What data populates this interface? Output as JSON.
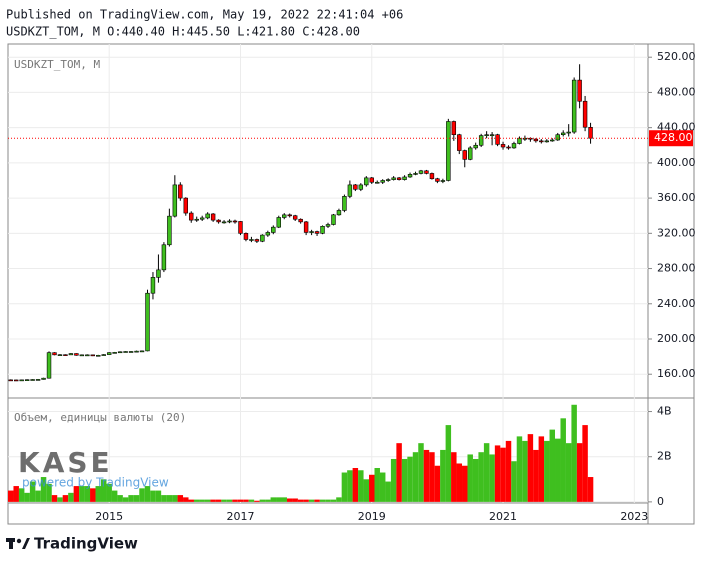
{
  "header": {
    "published": "Published on TradingView.com, May 19, 2022 22:41:04 +06",
    "quote": "USDKZT_TOM, M O:440.40 H:445.50 L:421.80 C:428.00"
  },
  "footer": {
    "brand": "TradingView"
  },
  "chart_data": {
    "type": "candlestick",
    "symbol_label": "USDKZT_TOM, M",
    "volume_label": "Объем, единицы валюты (20)",
    "watermark": "KASE",
    "watermark_sub": "powered by TradingView",
    "up_color": "#3fbf1f",
    "down_color": "#ff0000",
    "grid": true,
    "categories": [
      null,
      null,
      null,
      null,
      null,
      null,
      null,
      null,
      null,
      null,
      null,
      null,
      null,
      null,
      null,
      null,
      null,
      null,
      "2015",
      null,
      null,
      null,
      null,
      null,
      null,
      null,
      null,
      null,
      null,
      null,
      null,
      null,
      null,
      null,
      null,
      null,
      null,
      null,
      null,
      null,
      null,
      null,
      "2017",
      null,
      null,
      null,
      null,
      null,
      null,
      null,
      null,
      null,
      null,
      null,
      null,
      null,
      null,
      null,
      null,
      null,
      null,
      null,
      null,
      null,
      null,
      null,
      "2019",
      null,
      null,
      null,
      null,
      null,
      null,
      null,
      null,
      null,
      null,
      null,
      null,
      null,
      null,
      null,
      null,
      null,
      null,
      null,
      null,
      null,
      null,
      null,
      "2021",
      null,
      null,
      null,
      null,
      null,
      null,
      null,
      null,
      null,
      null,
      null,
      null,
      null,
      null,
      null,
      null,
      null,
      null,
      null,
      null,
      null,
      null,
      null,
      "2023",
      null,
      null
    ],
    "open": [
      153.6,
      153.5,
      153.3,
      153.6,
      153.8,
      154.0,
      154.1,
      155.5,
      184.5,
      182.0,
      182.2,
      182.0,
      183.5,
      181.5,
      182.0,
      182.0,
      181.0,
      181.5,
      182.3,
      184.5,
      184.8,
      185.5,
      185.8,
      185.8,
      186.2,
      186.5,
      252.0,
      270.0,
      278.5,
      307.0,
      339.5,
      375.0,
      360.0,
      343.0,
      335.0,
      336.0,
      337.5,
      342.0,
      335.0,
      333.0,
      333.0,
      334.0,
      333.5,
      320.0,
      313.0,
      313.0,
      311.0,
      318.0,
      321.0,
      327.0,
      338.0,
      341.0,
      340.0,
      336.0,
      333.0,
      321.0,
      322.0,
      320.0,
      328.0,
      330.0,
      341.0,
      346.0,
      362.0,
      375.0,
      370.0,
      375.0,
      383.0,
      378.0,
      378.0,
      380.0,
      381.0,
      383.0,
      381.0,
      384.0,
      387.0,
      388.0,
      391.0,
      388.0,
      382.0,
      379.0,
      380.0,
      447.0,
      432.0,
      414.0,
      404.0,
      417.0,
      420.0,
      431.0,
      432.0,
      432.0,
      421.0,
      418.0,
      417.0,
      422.0,
      428.0,
      428.0,
      427.0,
      425.0,
      424.0,
      425.0,
      426.0,
      432.0,
      434.0,
      435.0,
      494.0,
      470.0,
      440.4,
      null,
      null,
      null,
      null,
      null,
      null,
      null,
      null,
      null,
      null
    ],
    "high": [
      154.2,
      153.9,
      154.0,
      154.2,
      154.4,
      154.6,
      156.0,
      186.0,
      185.0,
      182.8,
      182.6,
      184.0,
      183.8,
      182.5,
      182.6,
      182.3,
      182.0,
      182.8,
      185.0,
      185.3,
      186.0,
      186.2,
      186.3,
      186.8,
      187.0,
      256.0,
      276.0,
      296.0,
      310.0,
      348.0,
      386.0,
      378.0,
      361.0,
      345.0,
      339.0,
      340.0,
      344.0,
      343.0,
      336.0,
      335.0,
      336.0,
      335.5,
      334.0,
      321.0,
      316.0,
      314.0,
      319.0,
      323.0,
      329.0,
      340.0,
      343.0,
      342.5,
      341.0,
      337.0,
      334.0,
      324.0,
      323.0,
      329.0,
      332.0,
      342.0,
      348.0,
      364.0,
      380.0,
      376.0,
      377.0,
      385.0,
      384.0,
      380.0,
      381.5,
      382.5,
      385.0,
      384.0,
      386.0,
      389.0,
      390.0,
      392.0,
      392.0,
      389.0,
      383.0,
      382.0,
      450.0,
      448.0,
      433.0,
      415.0,
      419.0,
      423.0,
      433.0,
      436.0,
      435.0,
      433.0,
      424.0,
      420.0,
      424.0,
      430.0,
      431.0,
      429.0,
      428.0,
      427.0,
      427.0,
      428.0,
      434.0,
      437.0,
      444.0,
      497.0,
      512.0,
      476.0,
      445.5,
      null,
      null,
      null,
      null,
      null,
      null,
      null,
      null,
      null,
      null
    ],
    "low": [
      153.0,
      152.9,
      153.1,
      153.4,
      153.6,
      153.8,
      153.9,
      155.0,
      181.5,
      181.6,
      181.5,
      181.8,
      181.0,
      181.2,
      181.5,
      180.6,
      180.7,
      181.2,
      182.0,
      184.2,
      184.5,
      185.2,
      185.4,
      185.5,
      186.0,
      186.0,
      245.0,
      264.0,
      276.0,
      305.0,
      338.0,
      357.0,
      340.0,
      332.0,
      333.0,
      334.0,
      336.0,
      333.0,
      331.0,
      331.0,
      331.5,
      331.0,
      318.0,
      311.0,
      310.0,
      309.0,
      310.0,
      316.0,
      319.0,
      326.0,
      336.0,
      338.0,
      334.0,
      331.0,
      318.0,
      318.0,
      317.0,
      319.0,
      326.0,
      329.0,
      340.0,
      344.0,
      360.0,
      368.0,
      368.0,
      373.0,
      376.0,
      376.5,
      376.0,
      378.5,
      380.0,
      380.0,
      380.0,
      383.0,
      386.0,
      387.0,
      387.0,
      381.0,
      377.0,
      377.0,
      379.0,
      425.0,
      410.0,
      395.0,
      403.0,
      415.0,
      418.0,
      428.0,
      420.0,
      419.0,
      415.0,
      415.0,
      416.0,
      421.0,
      425.0,
      424.0,
      423.0,
      422.0,
      423.0,
      424.0,
      425.0,
      430.0,
      430.0,
      433.0,
      462.0,
      436.0,
      421.8,
      null,
      null,
      null,
      null,
      null,
      null,
      null,
      null,
      null,
      null
    ],
    "close": [
      153.5,
      153.3,
      153.6,
      153.8,
      154.0,
      154.1,
      155.5,
      184.5,
      182.0,
      182.2,
      182.0,
      183.5,
      181.5,
      182.0,
      182.0,
      181.0,
      181.5,
      182.3,
      184.5,
      184.8,
      185.5,
      185.8,
      185.8,
      186.2,
      186.5,
      252.0,
      270.0,
      278.5,
      307.0,
      339.5,
      375.0,
      360.0,
      343.0,
      335.0,
      336.0,
      337.5,
      342.0,
      335.0,
      333.0,
      333.0,
      334.0,
      333.5,
      320.0,
      313.0,
      313.0,
      311.0,
      318.0,
      321.0,
      327.0,
      338.0,
      341.0,
      340.0,
      336.0,
      333.0,
      321.0,
      322.0,
      320.0,
      328.0,
      330.0,
      341.0,
      346.0,
      362.0,
      375.0,
      370.0,
      375.0,
      383.0,
      378.0,
      378.0,
      380.0,
      381.0,
      383.0,
      381.0,
      384.0,
      387.0,
      388.0,
      391.0,
      388.0,
      382.0,
      379.0,
      380.0,
      447.0,
      432.0,
      414.0,
      404.0,
      417.0,
      420.0,
      431.0,
      432.0,
      432.0,
      421.0,
      418.0,
      417.0,
      422.0,
      428.0,
      428.0,
      427.0,
      425.0,
      424.0,
      425.0,
      426.0,
      432.0,
      434.0,
      435.0,
      494.0,
      470.0,
      440.5,
      428.0,
      null,
      null,
      null,
      null,
      null,
      null,
      null,
      null,
      null,
      null
    ],
    "volume": [
      500000000,
      700000000,
      600000000,
      400000000,
      900000000,
      500000000,
      1100000000,
      800000000,
      300000000,
      200000000,
      300000000,
      400000000,
      700000000,
      700000000,
      700000000,
      600000000,
      700000000,
      1000000000,
      800000000,
      500000000,
      300000000,
      200000000,
      300000000,
      300000000,
      600000000,
      700000000,
      500000000,
      500000000,
      300000000,
      300000000,
      300000000,
      300000000,
      200000000,
      100000000,
      100000000,
      100000000,
      100000000,
      100000000,
      100000000,
      100000000,
      100000000,
      100000000,
      100000000,
      100000000,
      100000000,
      50000000,
      100000000,
      100000000,
      200000000,
      200000000,
      200000000,
      150000000,
      150000000,
      100000000,
      100000000,
      100000000,
      100000000,
      100000000,
      100000000,
      100000000,
      200000000,
      1300000000,
      1400000000,
      1500000000,
      1400000000,
      1000000000,
      1200000000,
      1500000000,
      1300000000,
      900000000,
      1900000000,
      2600000000,
      1900000000,
      2000000000,
      2200000000,
      2600000000,
      2300000000,
      2200000000,
      1600000000,
      2300000000,
      3400000000,
      2200000000,
      1700000000,
      1600000000,
      2100000000,
      1900000000,
      2200000000,
      2600000000,
      2100000000,
      2500000000,
      2400000000,
      2700000000,
      1800000000,
      2900000000,
      2700000000,
      3000000000,
      2300000000,
      2900000000,
      2700000000,
      3200000000,
      2800000000,
      3700000000,
      2600000000,
      4300000000,
      2600000000,
      3400000000,
      1100000000,
      null,
      null,
      null,
      null,
      null,
      null,
      null,
      null,
      null,
      null
    ],
    "ylim": [
      133,
      535
    ],
    "yticks": [
      {
        "value": 160,
        "label": "160.00"
      },
      {
        "value": 200,
        "label": "200.00"
      },
      {
        "value": 240,
        "label": "240.00"
      },
      {
        "value": 280,
        "label": "280.00"
      },
      {
        "value": 320,
        "label": "320.00"
      },
      {
        "value": 360,
        "label": "360.00"
      },
      {
        "value": 400,
        "label": "400.00"
      },
      {
        "value": 440,
        "label": "440.00"
      },
      {
        "value": 480,
        "label": "480.00"
      },
      {
        "value": 520,
        "label": "520.00"
      }
    ],
    "volume_lim": [
      -50000000,
      4600000000
    ],
    "volume_ticks": [
      {
        "value": 0,
        "label": "0"
      },
      {
        "value": 2000000000,
        "label": "2B"
      },
      {
        "value": 4000000000,
        "label": "4B"
      }
    ],
    "last_price": {
      "value": 428,
      "label": "428.00",
      "color": "#ff0000"
    }
  }
}
